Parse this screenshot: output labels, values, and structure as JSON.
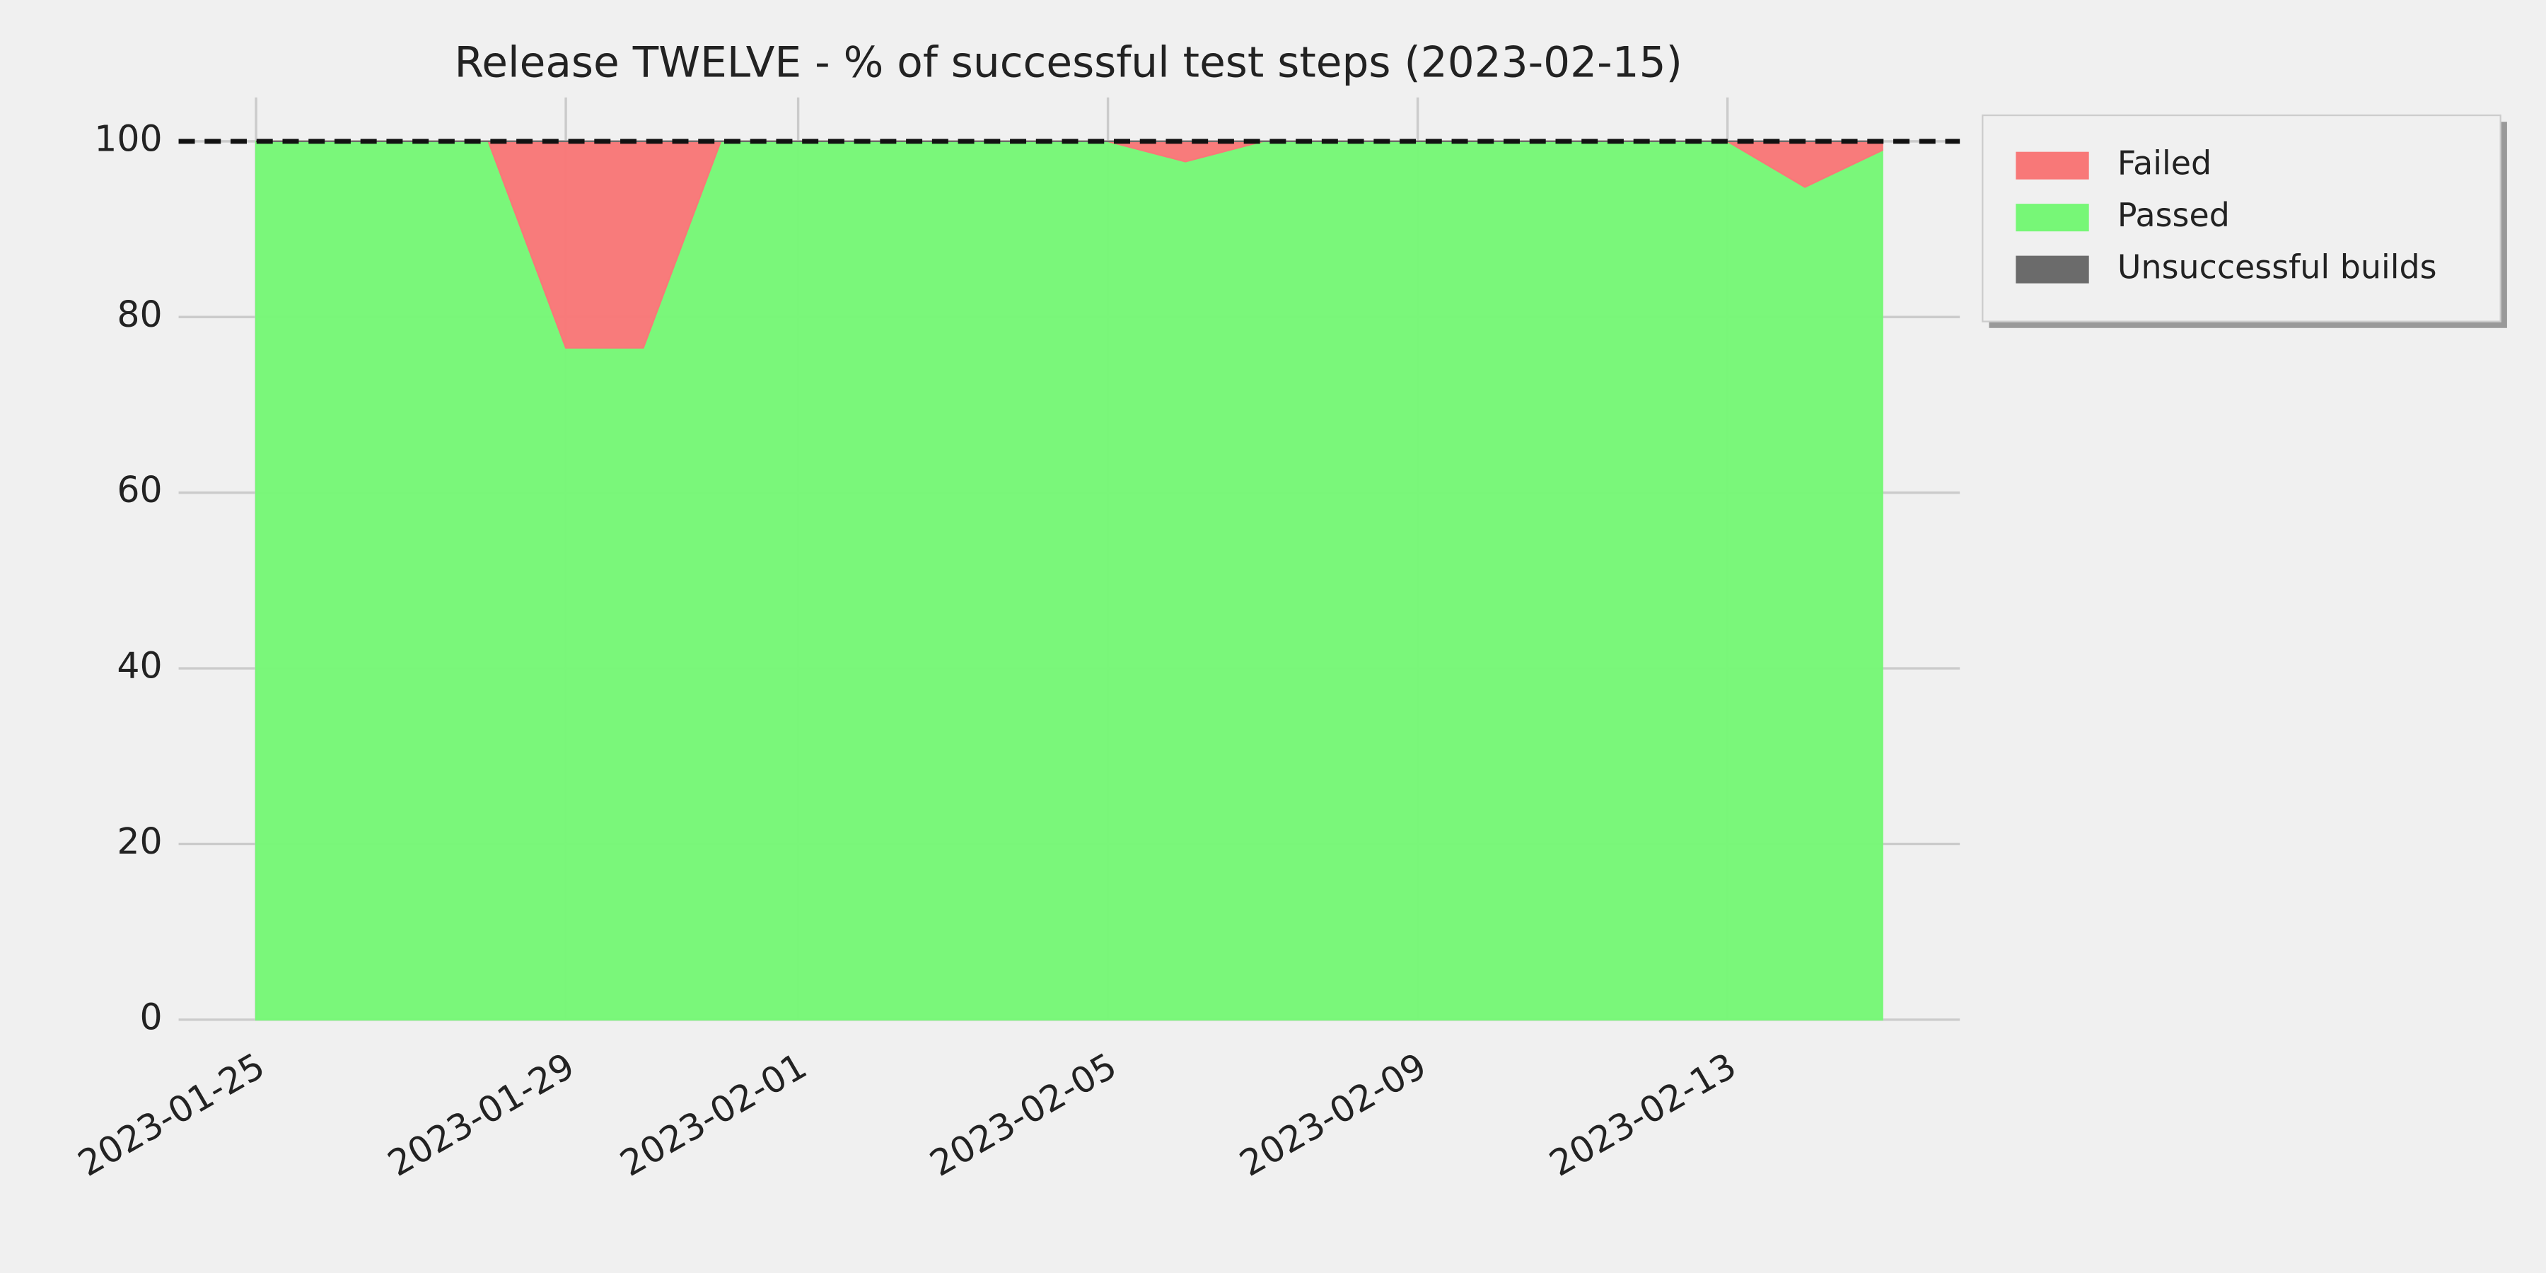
{
  "chart_data": {
    "type": "stacked_area",
    "title": "Release TWELVE - % of successful test steps (2023-02-15)",
    "x": [
      "2023-01-25",
      "2023-01-26",
      "2023-01-27",
      "2023-01-28",
      "2023-01-29",
      "2023-01-30",
      "2023-01-31",
      "2023-02-01",
      "2023-02-02",
      "2023-02-03",
      "2023-02-04",
      "2023-02-05",
      "2023-02-06",
      "2023-02-07",
      "2023-02-08",
      "2023-02-09",
      "2023-02-10",
      "2023-02-11",
      "2023-02-12",
      "2023-02-13",
      "2023-02-14",
      "2023-02-15"
    ],
    "series": [
      {
        "name": "Passed",
        "color": "#77f777",
        "values": [
          100,
          100,
          100,
          100,
          76.5,
          76.5,
          100,
          100,
          100,
          100,
          100,
          100,
          97.7,
          100,
          100,
          100,
          100,
          100,
          100,
          100,
          94.8,
          99
        ]
      },
      {
        "name": "Failed",
        "color": "#f87878",
        "values": [
          0,
          0,
          0,
          0,
          23.5,
          23.5,
          0,
          0,
          0,
          0,
          0,
          0,
          2.3,
          0,
          0,
          0,
          0,
          0,
          0,
          0,
          5.2,
          1
        ]
      },
      {
        "name": "Unsuccessful builds",
        "color": "#6b6b6b",
        "values": [
          0,
          0,
          0,
          0,
          0,
          0,
          0,
          0,
          0,
          0,
          0,
          0,
          0,
          0,
          0,
          0,
          0,
          0,
          0,
          0,
          0,
          0
        ]
      }
    ],
    "legend_order": [
      1,
      0,
      2
    ],
    "reference_line": 100,
    "xlim": [
      "2023-01-24",
      "2023-02-16"
    ],
    "xticks": [
      "2023-01-25",
      "2023-01-29",
      "2023-02-01",
      "2023-02-05",
      "2023-02-09",
      "2023-02-13"
    ],
    "ylim": [
      0,
      105
    ],
    "yticks": [
      0,
      20,
      40,
      60,
      80,
      100
    ],
    "grid": true,
    "legend": "outside-upper-right"
  }
}
